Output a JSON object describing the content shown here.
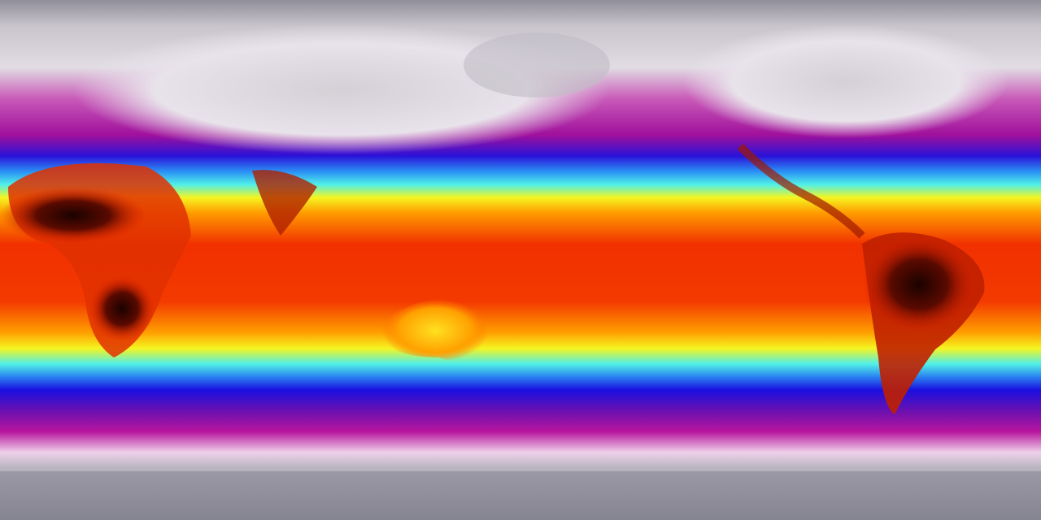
{
  "map": {
    "projection": "equirectangular",
    "variable": "temperature",
    "colormap": {
      "polar_grey": "#8f8e9a",
      "snow_white": "#eee6ee",
      "magenta": "#b0139f",
      "purple": "#5a0fb0",
      "blue": "#1a10e0",
      "cyan": "#40e8f0",
      "yellow": "#f5f520",
      "orange": "#ff7a00",
      "red": "#f02000",
      "dark_red": "#3a0500"
    }
  }
}
